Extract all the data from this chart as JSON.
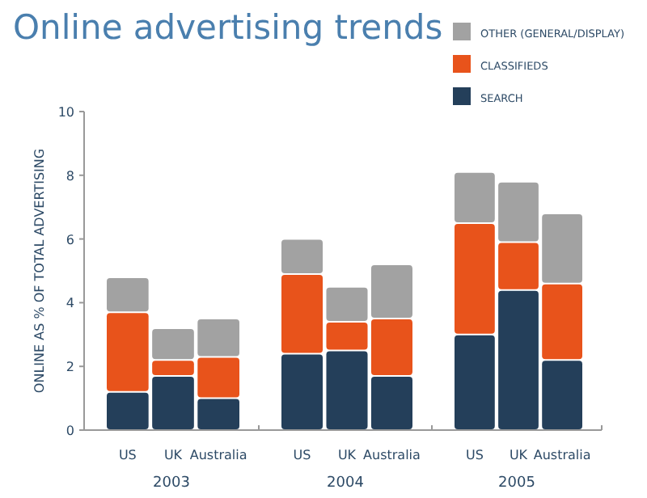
{
  "chart_data": [
    {
      "type": "bar",
      "title": "Online advertising trends",
      "ylabel": "ONLINE  AS % OF TOTAL ADVERTISING",
      "xlabel": "2003",
      "categories": [
        "US",
        "UK",
        "Australia"
      ],
      "stacked": true,
      "ylim": [
        0,
        10
      ],
      "yticks": [
        0,
        2,
        4,
        6,
        8,
        10
      ],
      "series": [
        {
          "color": "#243f5a",
          "values": [
            1.2,
            1.7,
            1.0
          ]
        },
        {
          "color": "#e8531b",
          "values": [
            2.5,
            0.5,
            1.3
          ]
        },
        {
          "color": "#a2a2a2",
          "values": [
            1.1,
            1.0,
            1.2
          ]
        }
      ]
    },
    {
      "type": "bar",
      "xlabel": "2004",
      "categories": [
        "US",
        "UK",
        "Australia"
      ],
      "stacked": true,
      "ylim": [
        0,
        10
      ],
      "tick_labels": "x",
      "series": [
        {
          "color": "#243f5a",
          "values": [
            2.4,
            2.5,
            1.7
          ]
        },
        {
          "color": "#e8531b",
          "values": [
            2.5,
            0.9,
            1.8
          ]
        },
        {
          "color": "#a2a2a2",
          "values": [
            1.1,
            1.1,
            1.7
          ]
        }
      ]
    },
    {
      "type": "bar",
      "xlabel": "2005",
      "categories": [
        "US",
        "UK",
        "Australia"
      ],
      "stacked": true,
      "ylim": [
        0,
        10
      ],
      "tick_labels": "x",
      "legend": "top right",
      "series": [
        {
          "name": "SEARCH",
          "color": "#243f5a",
          "values": [
            3.0,
            4.4,
            2.2
          ]
        },
        {
          "name": "CLASSIFIEDS",
          "color": "#e8531b",
          "values": [
            3.5,
            1.5,
            2.4
          ]
        },
        {
          "name": "OTHER (GENERAL/DISPLAY)",
          "color": "#a2a2a2",
          "values": [
            1.6,
            1.9,
            2.2
          ]
        }
      ]
    }
  ]
}
